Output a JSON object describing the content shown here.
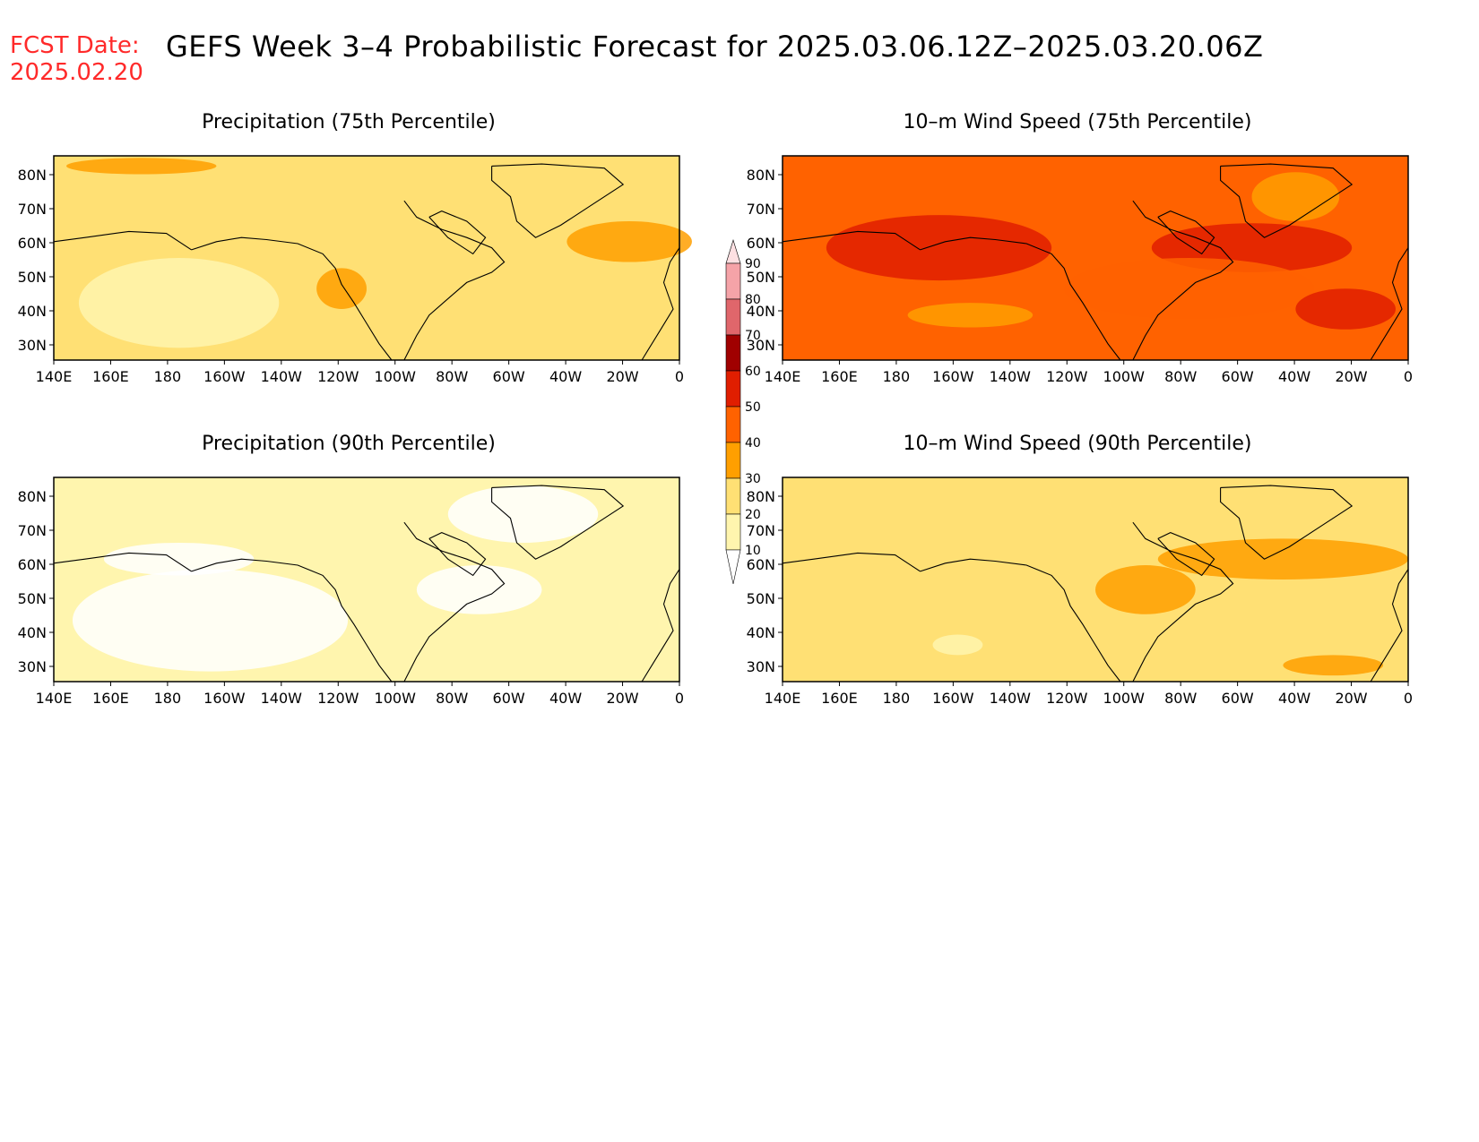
{
  "header": {
    "fcst_label": "FCST Date:",
    "fcst_date": "2025.02.20",
    "title": "GEFS Week 3–4 Probabilistic Forecast for 2025.03.06.12Z–2025.03.20.06Z"
  },
  "axes": {
    "lat_ticks": [
      "80N",
      "70N",
      "60N",
      "50N",
      "40N",
      "30N"
    ],
    "lon_ticks": [
      "140E",
      "160E",
      "180",
      "160W",
      "140W",
      "120W",
      "100W",
      "80W",
      "60W",
      "40W",
      "20W",
      "0"
    ]
  },
  "panels": [
    {
      "title": "Precipitation (75th Percentile)",
      "base_level": 20
    },
    {
      "title": "10–m Wind Speed (75th Percentile)",
      "base_level": 40
    },
    {
      "title": "Precipitation (90th Percentile)",
      "base_level": 10
    },
    {
      "title": "10–m Wind Speed (90th Percentile)",
      "base_level": 20
    }
  ],
  "colorbar": {
    "labels": [
      "90",
      "80",
      "70",
      "60",
      "50",
      "40",
      "30",
      "20",
      "10"
    ],
    "colors": [
      "#f5a3a8",
      "#e0666b",
      "#a00000",
      "#e01e00",
      "#ff6200",
      "#ff9f00",
      "#ffe074",
      "#fff5ae"
    ]
  }
}
